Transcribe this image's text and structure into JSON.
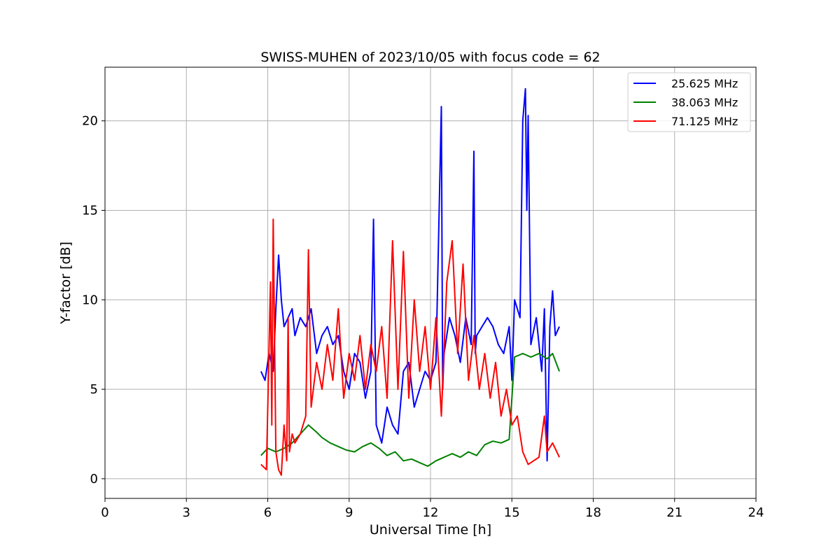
{
  "chart_data": {
    "type": "line",
    "title": "SWISS-MUHEN of 2023/10/05 with focus code = 62",
    "xlabel": "Universal Time [h]",
    "ylabel": "Y-factor [dB]",
    "xlim": [
      0,
      24
    ],
    "ylim": [
      -1.1,
      23
    ],
    "xticks": [
      0,
      3,
      6,
      9,
      12,
      15,
      18,
      21,
      24
    ],
    "yticks": [
      0,
      5,
      10,
      15,
      20
    ],
    "grid": true,
    "legend_position": "top-right",
    "series": [
      {
        "name": "25.625 MHz",
        "color": "#0000ff",
        "x": [
          5.75,
          5.9,
          6.05,
          6.2,
          6.3,
          6.4,
          6.5,
          6.6,
          6.75,
          6.9,
          7.0,
          7.2,
          7.4,
          7.6,
          7.8,
          8.0,
          8.2,
          8.4,
          8.6,
          8.8,
          9.0,
          9.2,
          9.4,
          9.6,
          9.8,
          9.9,
          10.0,
          10.2,
          10.4,
          10.6,
          10.8,
          11.0,
          11.2,
          11.4,
          11.6,
          11.8,
          12.0,
          12.2,
          12.4,
          12.45,
          12.5,
          12.7,
          12.9,
          13.1,
          13.3,
          13.5,
          13.6,
          13.65,
          13.7,
          13.9,
          14.1,
          14.3,
          14.5,
          14.7,
          14.9,
          15.0,
          15.1,
          15.3,
          15.4,
          15.5,
          15.55,
          15.6,
          15.7,
          15.9,
          16.1,
          16.2,
          16.3,
          16.4,
          16.5,
          16.6,
          16.75
        ],
        "values": [
          6.0,
          5.5,
          7.0,
          6.0,
          9.5,
          12.5,
          10.0,
          8.5,
          9.0,
          9.5,
          8.0,
          9.0,
          8.5,
          9.5,
          7.0,
          8.0,
          8.5,
          7.5,
          8.0,
          6.0,
          5.0,
          7.0,
          6.5,
          4.5,
          6.0,
          14.5,
          3.0,
          2.0,
          4.0,
          3.0,
          2.5,
          6.0,
          6.5,
          4.0,
          5.0,
          6.0,
          5.5,
          6.5,
          20.8,
          5.0,
          7.0,
          9.0,
          8.0,
          6.5,
          9.0,
          7.5,
          18.3,
          7.0,
          8.0,
          8.5,
          9.0,
          8.5,
          7.5,
          7.0,
          8.5,
          5.5,
          10.0,
          9.0,
          20.0,
          21.8,
          15.0,
          20.3,
          7.5,
          9.0,
          6.0,
          9.5,
          1.0,
          8.5,
          10.5,
          8.0,
          8.5
        ]
      },
      {
        "name": "38.063 MHz",
        "color": "#008000",
        "x": [
          5.75,
          6.0,
          6.3,
          6.6,
          6.9,
          7.2,
          7.5,
          7.8,
          8.0,
          8.3,
          8.6,
          8.9,
          9.2,
          9.5,
          9.8,
          10.1,
          10.4,
          10.7,
          11.0,
          11.3,
          11.6,
          11.9,
          12.2,
          12.5,
          12.8,
          13.1,
          13.4,
          13.7,
          14.0,
          14.3,
          14.6,
          14.9,
          15.1,
          15.4,
          15.7,
          16.0,
          16.3,
          16.5,
          16.75
        ],
        "values": [
          1.3,
          1.7,
          1.5,
          1.7,
          2.0,
          2.5,
          3.0,
          2.6,
          2.3,
          2.0,
          1.8,
          1.6,
          1.5,
          1.8,
          2.0,
          1.7,
          1.3,
          1.5,
          1.0,
          1.1,
          0.9,
          0.7,
          1.0,
          1.2,
          1.4,
          1.2,
          1.5,
          1.3,
          1.9,
          2.1,
          2.0,
          2.2,
          6.8,
          7.0,
          6.8,
          7.0,
          6.7,
          7.0,
          6.0
        ]
      },
      {
        "name": "71.125 MHz",
        "color": "#ff0000",
        "x": [
          5.75,
          5.95,
          6.1,
          6.15,
          6.2,
          6.3,
          6.4,
          6.5,
          6.6,
          6.7,
          6.75,
          6.8,
          6.9,
          7.0,
          7.2,
          7.4,
          7.5,
          7.6,
          7.8,
          8.0,
          8.2,
          8.4,
          8.6,
          8.8,
          9.0,
          9.2,
          9.4,
          9.6,
          9.8,
          10.0,
          10.2,
          10.4,
          10.6,
          10.8,
          11.0,
          11.2,
          11.4,
          11.6,
          11.8,
          12.0,
          12.2,
          12.4,
          12.6,
          12.8,
          13.0,
          13.2,
          13.4,
          13.6,
          13.8,
          14.0,
          14.2,
          14.4,
          14.6,
          14.8,
          15.0,
          15.2,
          15.4,
          15.6,
          15.8,
          16.0,
          16.2,
          16.3,
          16.5,
          16.75
        ],
        "values": [
          0.8,
          0.5,
          11.0,
          3.0,
          14.5,
          1.5,
          0.5,
          0.2,
          3.0,
          1.0,
          9.0,
          1.5,
          2.5,
          2.0,
          2.5,
          3.5,
          12.8,
          4.0,
          6.5,
          5.0,
          7.5,
          5.5,
          9.5,
          4.5,
          7.0,
          5.5,
          8.0,
          5.0,
          7.5,
          6.0,
          8.5,
          4.5,
          13.3,
          5.0,
          12.7,
          4.5,
          10.0,
          6.0,
          8.5,
          5.0,
          9.0,
          3.5,
          11.0,
          13.3,
          7.0,
          12.0,
          5.5,
          8.0,
          5.0,
          7.0,
          4.5,
          6.5,
          3.5,
          5.0,
          3.0,
          3.5,
          1.5,
          0.8,
          1.0,
          1.2,
          3.5,
          1.5,
          2.0,
          1.2
        ]
      }
    ]
  }
}
